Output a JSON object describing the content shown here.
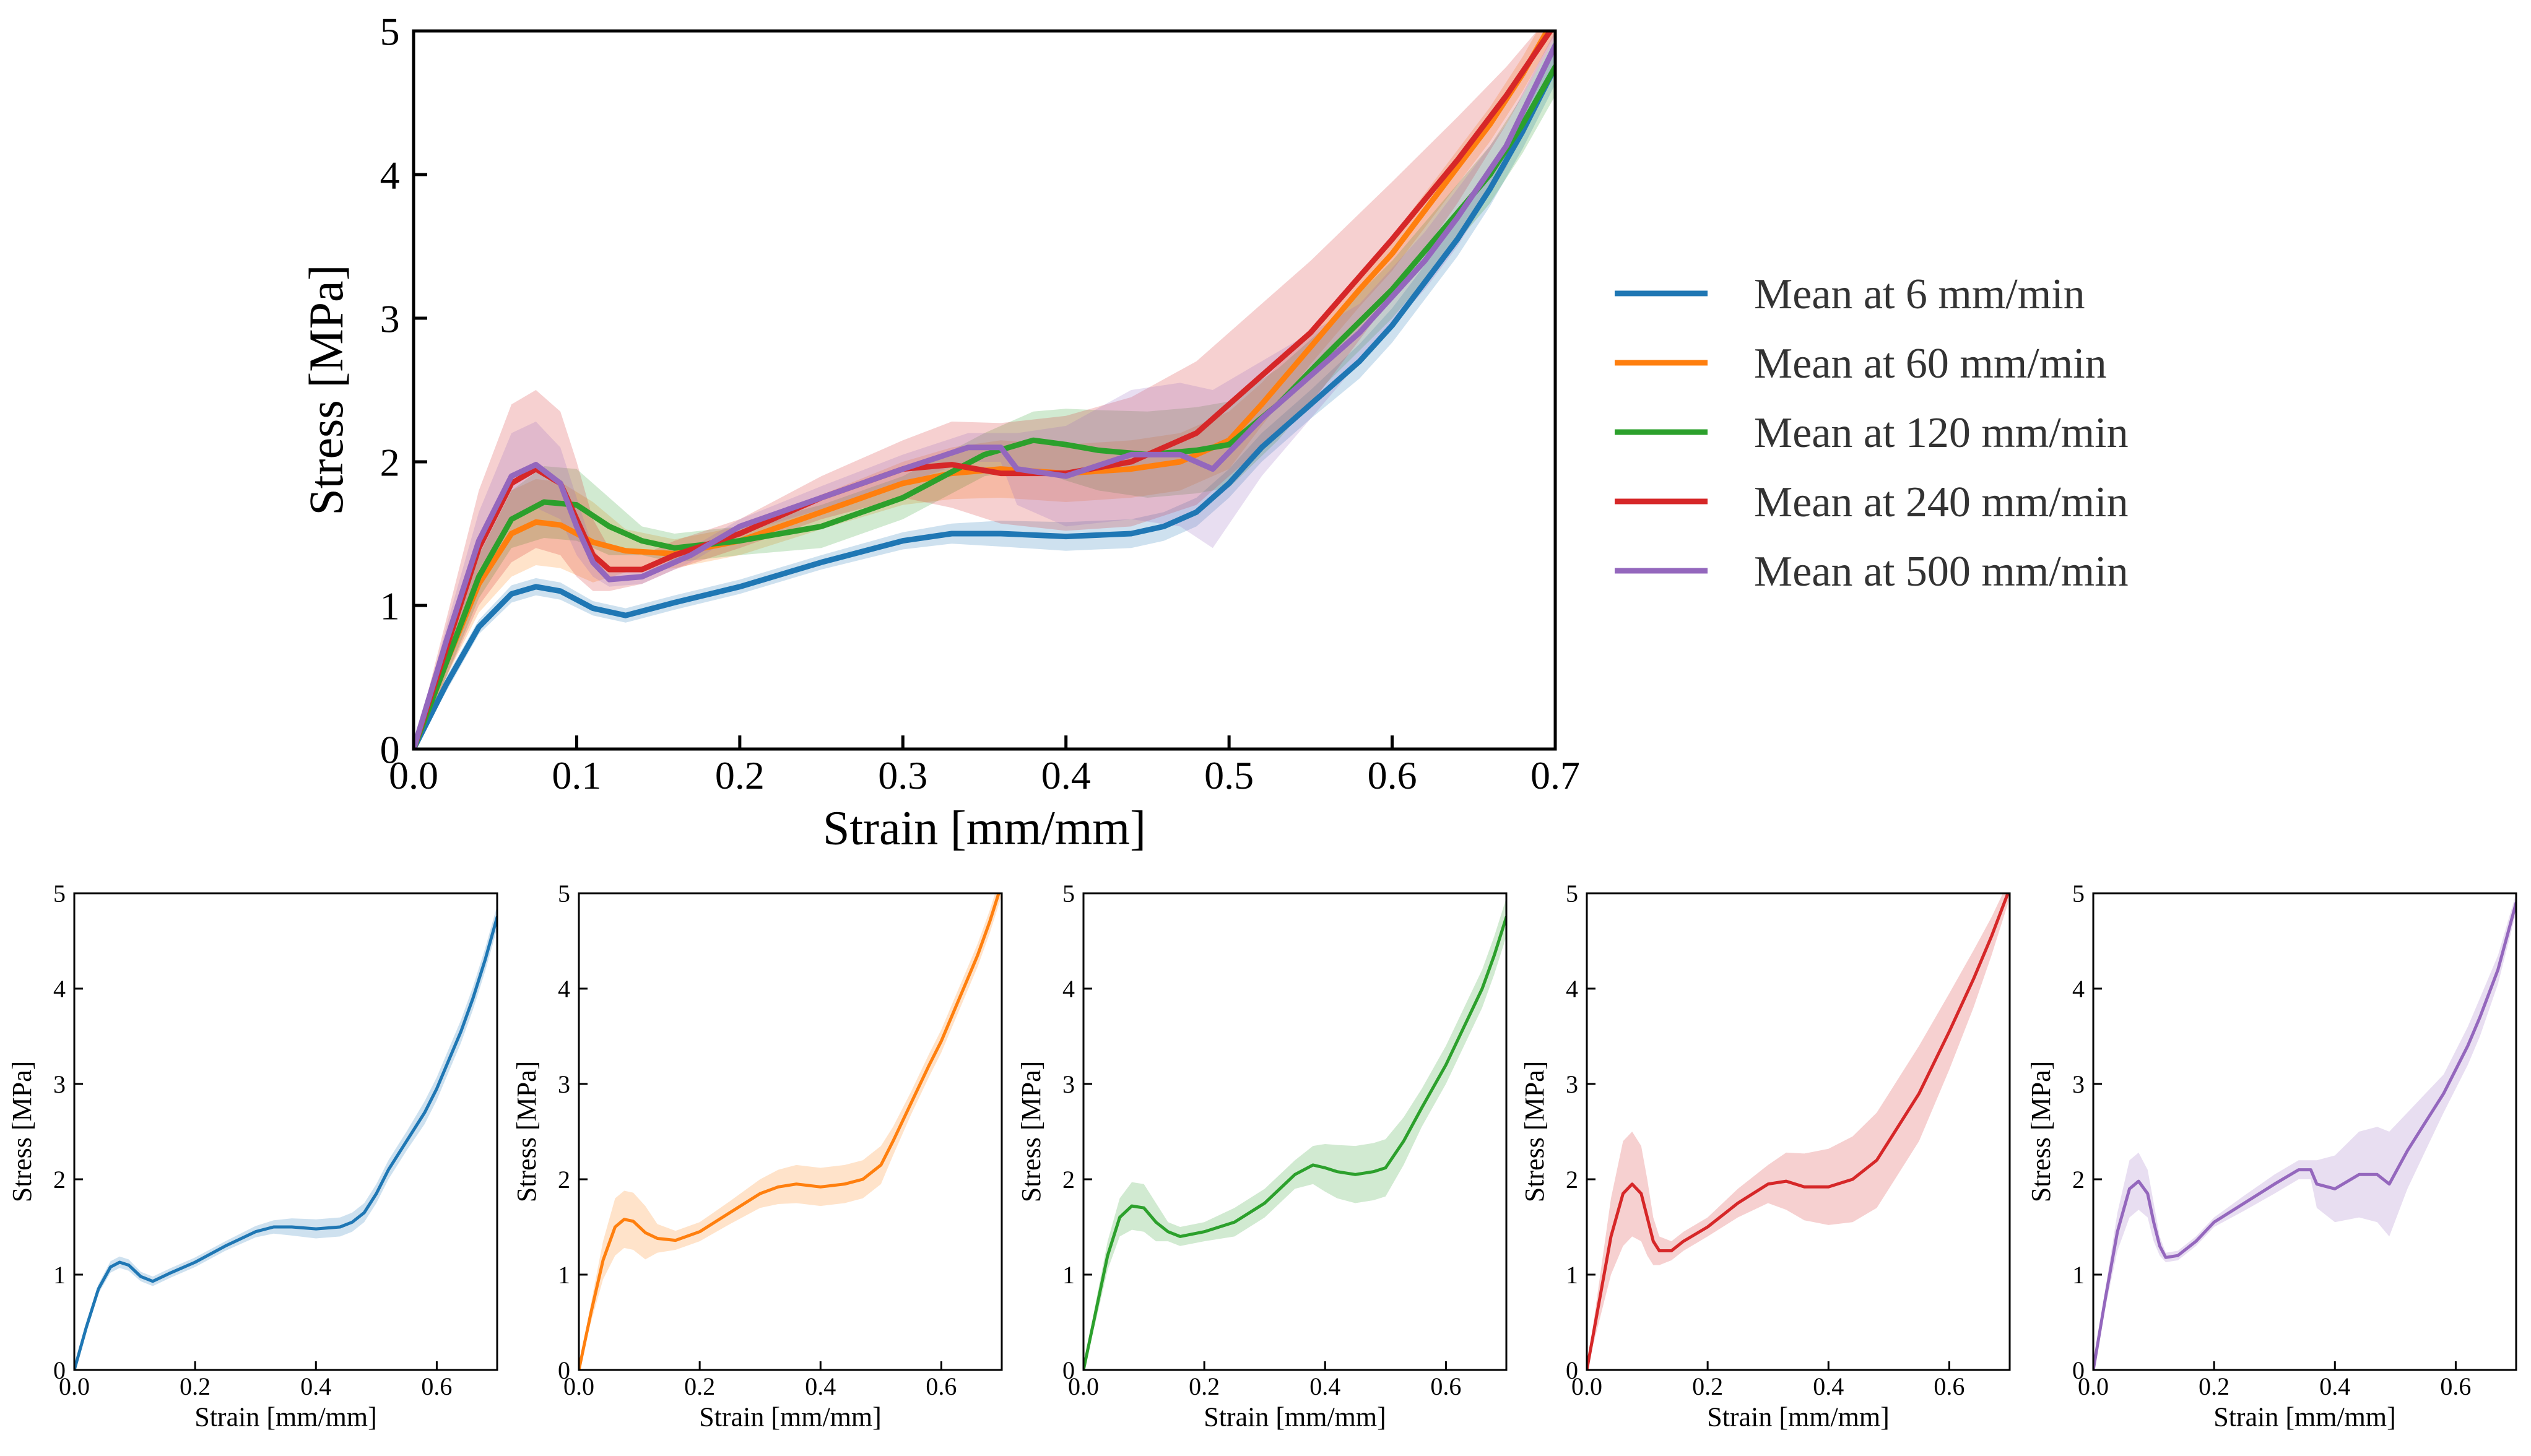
{
  "chart_data": [
    {
      "panel": "main",
      "type": "line",
      "xlabel": "Strain [mm/mm]",
      "ylabel": "Stress [MPa]",
      "xlim": [
        0,
        0.7
      ],
      "ylim": [
        0,
        5
      ],
      "xticks": [
        "0.0",
        "0.1",
        "0.2",
        "0.3",
        "0.4",
        "0.5",
        "0.6",
        "0.7"
      ],
      "yticks": [
        "0",
        "1",
        "2",
        "3",
        "4",
        "5"
      ],
      "legend_position": "right",
      "series_ids": [
        "r6",
        "r60",
        "r120",
        "r240",
        "r500"
      ]
    },
    {
      "panel": "small",
      "type": "line",
      "series_id": "r6",
      "xlabel": "Strain [mm/mm]",
      "ylabel": "Stress [MPa]",
      "xlim": [
        0,
        0.7
      ],
      "ylim": [
        0,
        5
      ],
      "xticks": [
        "0.0",
        "0.2",
        "0.4",
        "0.6"
      ],
      "yticks": [
        "0",
        "1",
        "2",
        "3",
        "4",
        "5"
      ]
    },
    {
      "panel": "small",
      "type": "line",
      "series_id": "r60",
      "xlabel": "Strain [mm/mm]",
      "ylabel": "Stress [MPa]",
      "xlim": [
        0,
        0.7
      ],
      "ylim": [
        0,
        5
      ],
      "xticks": [
        "0.0",
        "0.2",
        "0.4",
        "0.6"
      ],
      "yticks": [
        "0",
        "1",
        "2",
        "3",
        "4",
        "5"
      ]
    },
    {
      "panel": "small",
      "type": "line",
      "series_id": "r120",
      "xlabel": "Strain [mm/mm]",
      "ylabel": "Stress [MPa]",
      "xlim": [
        0,
        0.7
      ],
      "ylim": [
        0,
        5
      ],
      "xticks": [
        "0.0",
        "0.2",
        "0.4",
        "0.6"
      ],
      "yticks": [
        "0",
        "1",
        "2",
        "3",
        "4",
        "5"
      ]
    },
    {
      "panel": "small",
      "type": "line",
      "series_id": "r240",
      "xlabel": "Strain [mm/mm]",
      "ylabel": "Stress [MPa]",
      "xlim": [
        0,
        0.7
      ],
      "ylim": [
        0,
        5
      ],
      "xticks": [
        "0.0",
        "0.2",
        "0.4",
        "0.6"
      ],
      "yticks": [
        "0",
        "1",
        "2",
        "3",
        "4",
        "5"
      ]
    },
    {
      "panel": "small",
      "type": "line",
      "series_id": "r500",
      "xlabel": "Strain [mm/mm]",
      "ylabel": "Stress [MPa]",
      "xlim": [
        0,
        0.7
      ],
      "ylim": [
        0,
        5
      ],
      "xticks": [
        "0.0",
        "0.2",
        "0.4",
        "0.6"
      ],
      "yticks": [
        "0",
        "1",
        "2",
        "3",
        "4",
        "5"
      ]
    }
  ],
  "series": [
    {
      "id": "r6",
      "name": "Mean at 6 mm/min",
      "color": "#1f77b4",
      "x": [
        0,
        0.02,
        0.04,
        0.06,
        0.075,
        0.09,
        0.11,
        0.13,
        0.16,
        0.2,
        0.25,
        0.3,
        0.33,
        0.36,
        0.4,
        0.44,
        0.46,
        0.48,
        0.5,
        0.52,
        0.55,
        0.58,
        0.6,
        0.62,
        0.64,
        0.66,
        0.68,
        0.7
      ],
      "y": [
        0,
        0.45,
        0.85,
        1.08,
        1.13,
        1.1,
        0.98,
        0.93,
        1.02,
        1.13,
        1.3,
        1.45,
        1.5,
        1.5,
        1.48,
        1.5,
        1.55,
        1.65,
        1.85,
        2.1,
        2.4,
        2.7,
        2.95,
        3.25,
        3.55,
        3.9,
        4.3,
        4.75
      ],
      "spread": [
        0,
        0.05,
        0.05,
        0.06,
        0.06,
        0.06,
        0.05,
        0.05,
        0.05,
        0.05,
        0.05,
        0.06,
        0.07,
        0.09,
        0.1,
        0.1,
        0.1,
        0.1,
        0.1,
        0.1,
        0.1,
        0.12,
        0.12,
        0.12,
        0.12,
        0.12,
        0.12,
        0.12
      ]
    },
    {
      "id": "r60",
      "name": "Mean at 60 mm/min",
      "color": "#ff7f0e",
      "x": [
        0,
        0.02,
        0.04,
        0.06,
        0.075,
        0.09,
        0.11,
        0.13,
        0.16,
        0.2,
        0.25,
        0.3,
        0.33,
        0.36,
        0.4,
        0.44,
        0.47,
        0.5,
        0.52,
        0.55,
        0.58,
        0.6,
        0.62,
        0.64,
        0.66,
        0.68,
        0.7
      ],
      "y": [
        0,
        0.6,
        1.15,
        1.5,
        1.58,
        1.56,
        1.44,
        1.38,
        1.36,
        1.45,
        1.65,
        1.85,
        1.92,
        1.95,
        1.92,
        1.95,
        2.0,
        2.15,
        2.4,
        2.8,
        3.2,
        3.45,
        3.75,
        4.05,
        4.35,
        4.7,
        5.1
      ],
      "spread": [
        0,
        0.1,
        0.2,
        0.3,
        0.3,
        0.3,
        0.28,
        0.15,
        0.1,
        0.1,
        0.12,
        0.15,
        0.18,
        0.2,
        0.2,
        0.2,
        0.2,
        0.2,
        0.15,
        0.12,
        0.12,
        0.12,
        0.12,
        0.12,
        0.12,
        0.12,
        0.12
      ]
    },
    {
      "id": "r120",
      "name": "Mean at 120 mm/min",
      "color": "#2ca02c",
      "x": [
        0,
        0.02,
        0.04,
        0.06,
        0.08,
        0.1,
        0.12,
        0.14,
        0.16,
        0.2,
        0.25,
        0.3,
        0.35,
        0.38,
        0.4,
        0.42,
        0.45,
        0.48,
        0.5,
        0.53,
        0.56,
        0.6,
        0.63,
        0.66,
        0.68,
        0.7
      ],
      "y": [
        0,
        0.6,
        1.2,
        1.6,
        1.72,
        1.7,
        1.55,
        1.45,
        1.4,
        1.45,
        1.55,
        1.75,
        2.05,
        2.15,
        2.12,
        2.08,
        2.05,
        2.08,
        2.12,
        2.4,
        2.75,
        3.2,
        3.6,
        4.0,
        4.35,
        4.75
      ],
      "spread": [
        0,
        0.1,
        0.15,
        0.2,
        0.25,
        0.25,
        0.2,
        0.1,
        0.1,
        0.1,
        0.15,
        0.15,
        0.15,
        0.2,
        0.25,
        0.28,
        0.3,
        0.3,
        0.3,
        0.25,
        0.2,
        0.2,
        0.2,
        0.2,
        0.2,
        0.2
      ]
    },
    {
      "id": "r240",
      "name": "Mean at 240 mm/min",
      "color": "#d62728",
      "x": [
        0,
        0.02,
        0.04,
        0.06,
        0.075,
        0.09,
        0.1,
        0.11,
        0.12,
        0.14,
        0.16,
        0.2,
        0.25,
        0.3,
        0.33,
        0.36,
        0.4,
        0.44,
        0.48,
        0.5,
        0.55,
        0.6,
        0.64,
        0.67,
        0.7
      ],
      "y": [
        0,
        0.7,
        1.4,
        1.85,
        1.95,
        1.85,
        1.6,
        1.35,
        1.25,
        1.25,
        1.35,
        1.5,
        1.75,
        1.95,
        1.98,
        1.92,
        1.92,
        2.0,
        2.2,
        2.4,
        2.9,
        3.55,
        4.1,
        4.55,
        5.05
      ],
      "spread": [
        0,
        0.2,
        0.4,
        0.55,
        0.55,
        0.5,
        0.4,
        0.25,
        0.15,
        0.1,
        0.1,
        0.1,
        0.15,
        0.2,
        0.3,
        0.35,
        0.4,
        0.45,
        0.5,
        0.5,
        0.5,
        0.4,
        0.3,
        0.2,
        0.1
      ]
    },
    {
      "id": "r500",
      "name": "Mean at 500 mm/min",
      "color": "#9467bd",
      "x": [
        0,
        0.02,
        0.04,
        0.06,
        0.075,
        0.09,
        0.1,
        0.11,
        0.12,
        0.14,
        0.17,
        0.2,
        0.25,
        0.3,
        0.34,
        0.36,
        0.37,
        0.4,
        0.44,
        0.47,
        0.49,
        0.52,
        0.55,
        0.58,
        0.6,
        0.62,
        0.64,
        0.67,
        0.7
      ],
      "y": [
        0,
        0.75,
        1.45,
        1.9,
        1.98,
        1.85,
        1.55,
        1.3,
        1.18,
        1.2,
        1.35,
        1.55,
        1.75,
        1.95,
        2.1,
        2.1,
        1.95,
        1.9,
        2.05,
        2.05,
        1.95,
        2.3,
        2.6,
        2.9,
        3.15,
        3.4,
        3.7,
        4.2,
        4.9
      ],
      "spread": [
        0,
        0.1,
        0.2,
        0.3,
        0.3,
        0.25,
        0.2,
        0.1,
        0.05,
        0.05,
        0.05,
        0.05,
        0.08,
        0.1,
        0.1,
        0.1,
        0.25,
        0.35,
        0.45,
        0.5,
        0.55,
        0.4,
        0.3,
        0.2,
        0.2,
        0.2,
        0.2,
        0.15,
        0.1
      ]
    }
  ]
}
